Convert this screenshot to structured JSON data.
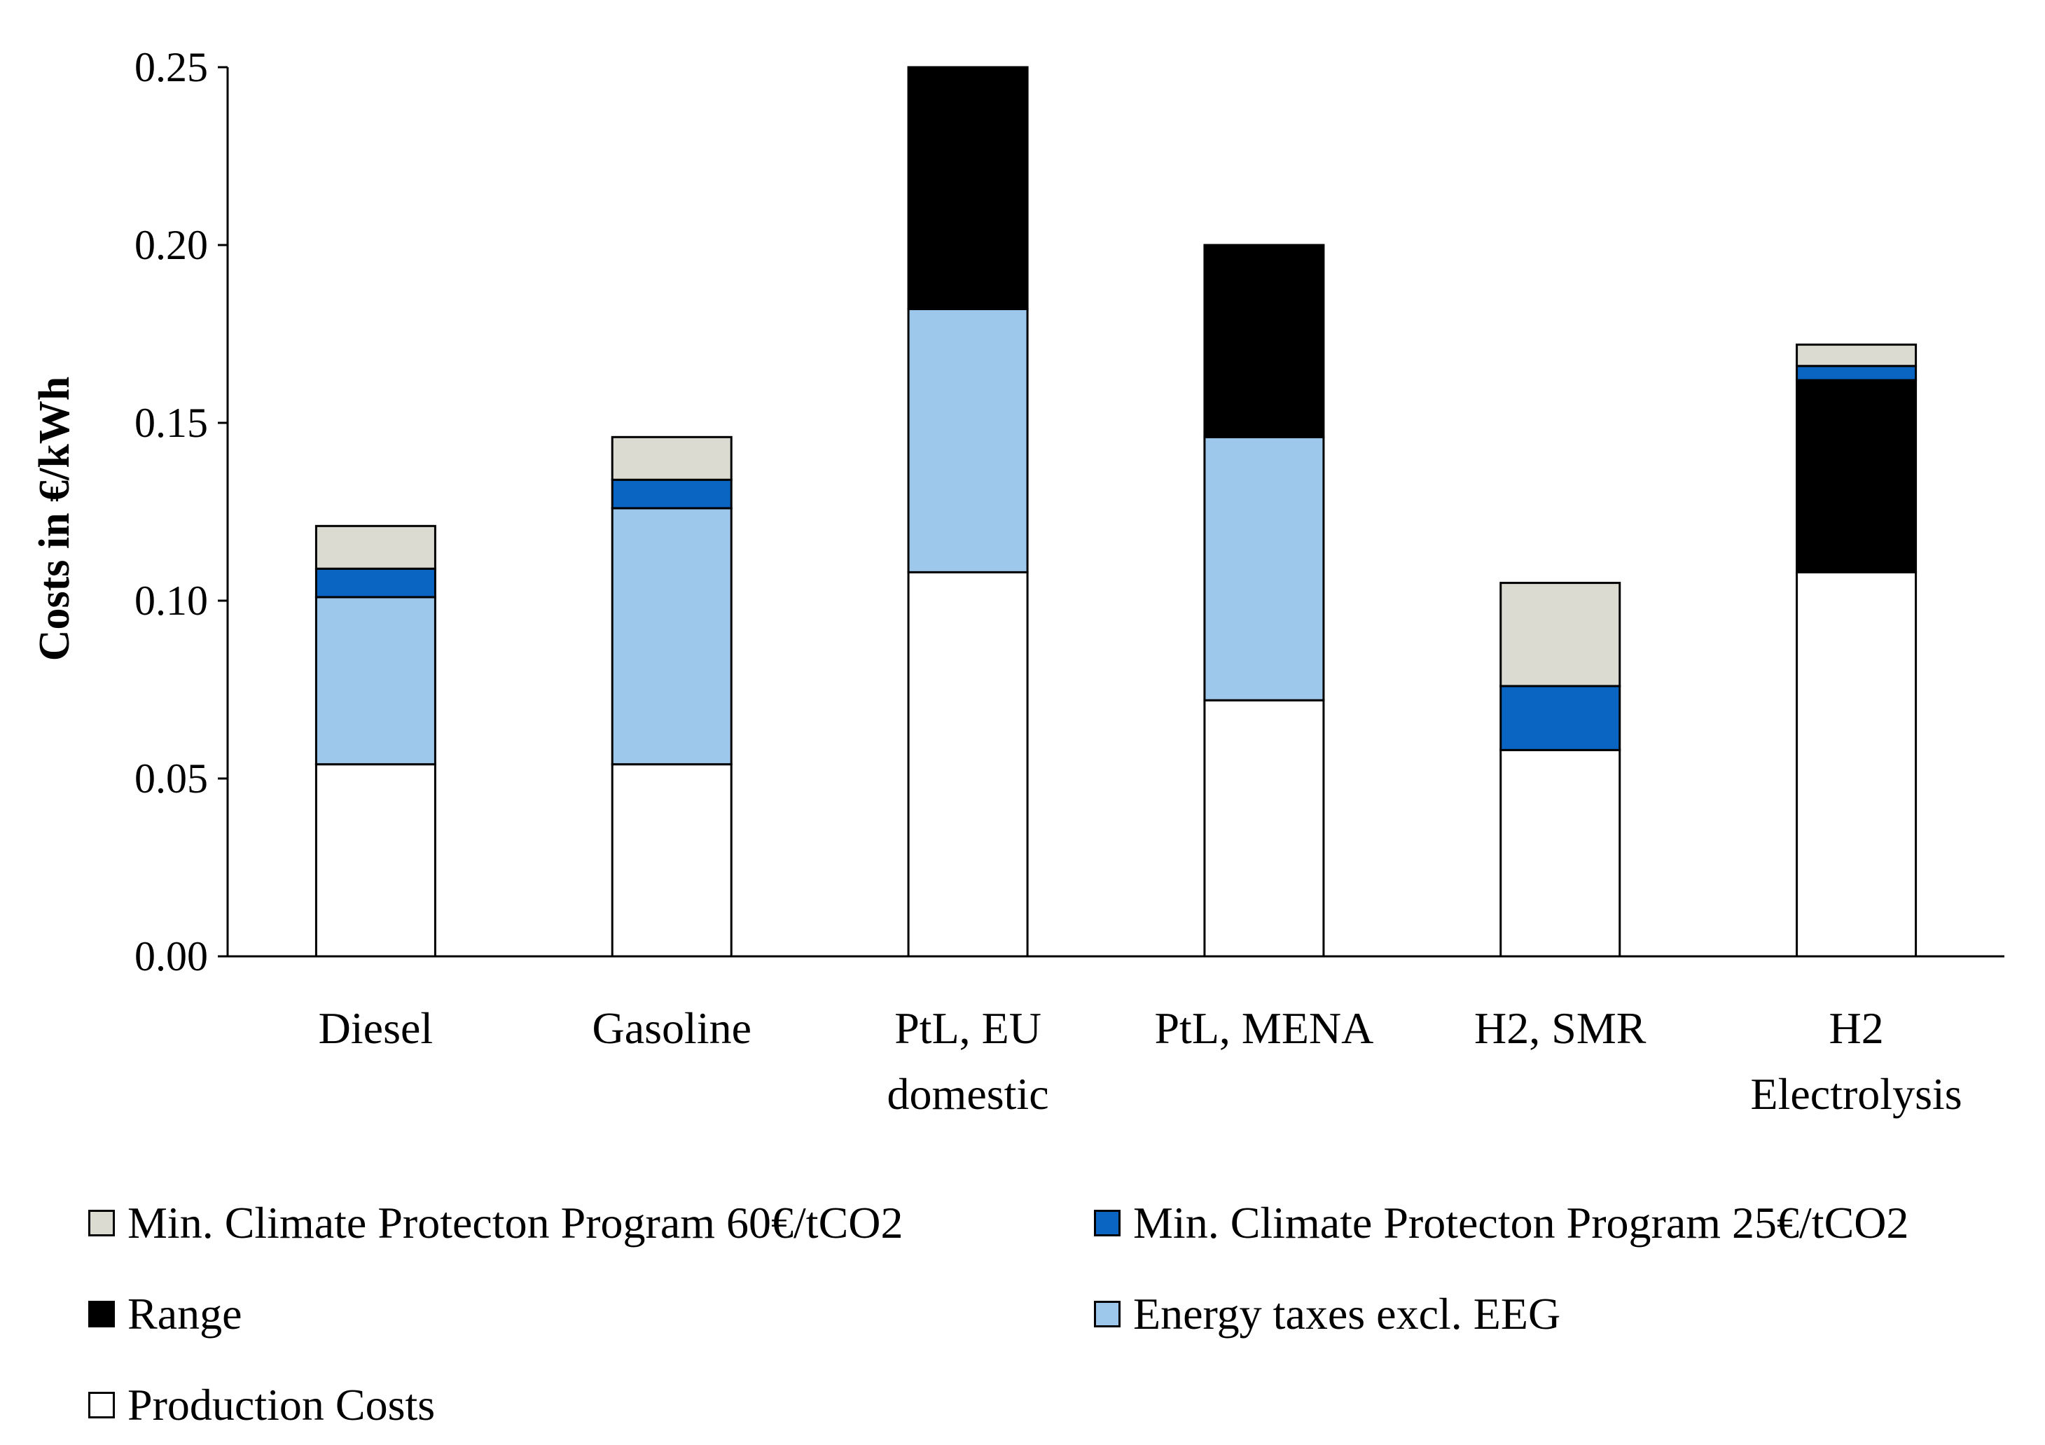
{
  "chart_data": {
    "type": "bar",
    "stacked": true,
    "title": "",
    "xlabel": "",
    "ylabel": "Costs in €/kWh",
    "ylim": [
      0,
      0.25
    ],
    "yticks": [
      "0.00",
      "0.05",
      "0.10",
      "0.15",
      "0.20",
      "0.25"
    ],
    "ytick_values": [
      0,
      0.05,
      0.1,
      0.15,
      0.2,
      0.25
    ],
    "categories": [
      [
        "Diesel"
      ],
      [
        "Gasoline"
      ],
      [
        "PtL, EU",
        "domestic"
      ],
      [
        "PtL, MENA"
      ],
      [
        "H2, SMR"
      ],
      [
        "H2",
        "Electrolysis"
      ]
    ],
    "series": [
      {
        "name": "Production Costs",
        "color": "#ffffff",
        "values": [
          0.054,
          0.054,
          0.108,
          0.072,
          0.058,
          0.108
        ]
      },
      {
        "name": "Energy taxes excl. EEG",
        "color": "#9dc8ec",
        "values": [
          0.047,
          0.072,
          0.074,
          0.074,
          0.0,
          0.0
        ]
      },
      {
        "name": "Range",
        "color": "#000000",
        "values": [
          0.0,
          0.0,
          0.068,
          0.054,
          0.0,
          0.054
        ]
      },
      {
        "name": "Min. Climate Protecton Program 25€/tCO2",
        "color": "#0a64c1",
        "values": [
          0.008,
          0.008,
          0.0,
          0.0,
          0.018,
          0.004
        ]
      },
      {
        "name": "Min. Climate Protecton Program 60€/tCO2",
        "color": "#dcdbd2",
        "values": [
          0.012,
          0.012,
          0.0,
          0.0,
          0.029,
          0.006
        ]
      }
    ],
    "legend": {
      "placement": "bottom",
      "entries": [
        {
          "label": "Min. Climate Protecton Program 60€/tCO2",
          "color": "#dcdbd2"
        },
        {
          "label": "Min. Climate Protecton Program 25€/tCO2",
          "color": "#0a64c1"
        },
        {
          "label": "Range",
          "color": "#000000"
        },
        {
          "label": "Energy taxes excl. EEG",
          "color": "#9dc8ec"
        },
        {
          "label": "Production Costs",
          "color": "#ffffff"
        }
      ]
    }
  }
}
